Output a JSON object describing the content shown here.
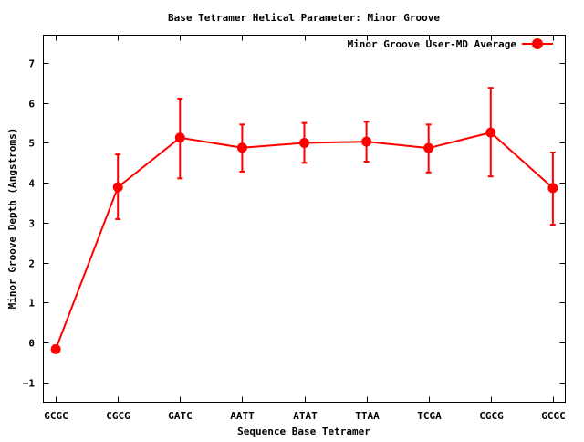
{
  "chart_data": {
    "type": "line",
    "title": "Base Tetramer Helical Parameter: Minor Groove",
    "xlabel": "Sequence Base Tetramer",
    "ylabel": "Minor Groove Depth (Angstroms)",
    "categories": [
      "GCGC",
      "CGCG",
      "GATC",
      "AATT",
      "ATAT",
      "TTAA",
      "TCGA",
      "CGCG",
      "GCGC"
    ],
    "ylim": [
      -1.5,
      7.7
    ],
    "xlim": [
      -0.2,
      8.2
    ],
    "yticks": [
      -1,
      0,
      1,
      2,
      3,
      4,
      5,
      6,
      7
    ],
    "grid": false,
    "legend_position": "top-right",
    "series": [
      {
        "name": "Minor Groove User-MD Average",
        "color": "#ff0000",
        "values": [
          -0.17,
          3.89,
          5.13,
          4.88,
          5.0,
          5.03,
          4.87,
          5.26,
          3.87
        ],
        "error_low": [
          null,
          3.09,
          4.11,
          4.28,
          4.5,
          4.53,
          4.26,
          4.16,
          2.95
        ],
        "error_high": [
          null,
          4.71,
          6.11,
          5.46,
          5.5,
          5.53,
          5.46,
          6.38,
          4.76
        ]
      }
    ]
  }
}
